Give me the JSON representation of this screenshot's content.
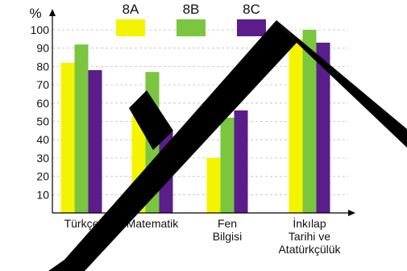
{
  "chart_data": {
    "type": "bar",
    "y_unit_label": "%",
    "categories": [
      [
        "Türkçe"
      ],
      [
        "Matematik"
      ],
      [
        "Fen",
        "Bilgisi"
      ],
      [
        "İnkılap",
        "Tarihi ve",
        "Atatürkçülük"
      ]
    ],
    "series": [
      {
        "name": "8A",
        "color": "#f4f400",
        "values": [
          82,
          53,
          30,
          95
        ]
      },
      {
        "name": "8B",
        "color": "#7bc63f",
        "values": [
          92,
          77,
          52,
          100
        ]
      },
      {
        "name": "8C",
        "color": "#5a1d8a",
        "values": [
          78,
          45,
          56,
          93
        ]
      }
    ],
    "y_ticks": [
      10,
      20,
      30,
      40,
      50,
      60,
      70,
      80,
      90,
      100
    ],
    "ylim": [
      0,
      105
    ],
    "grid": true,
    "legend_position": "top"
  },
  "decoration": {
    "stroke_color": "#000000",
    "icon": "large-check-mark-shape"
  }
}
